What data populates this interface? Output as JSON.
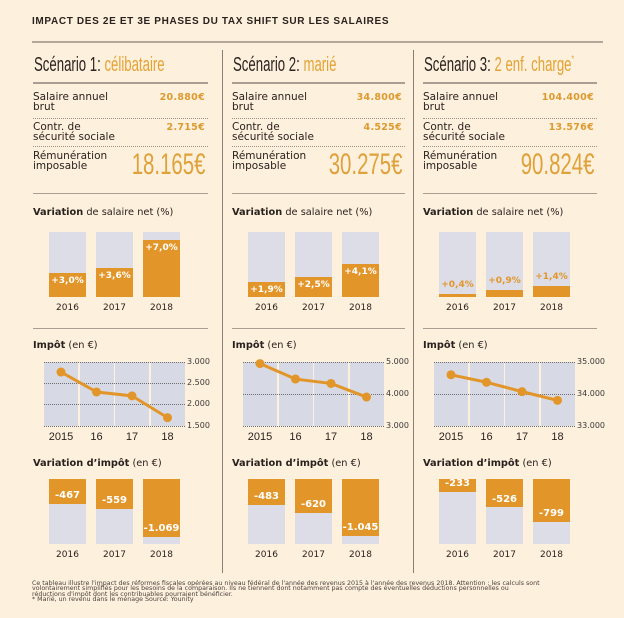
{
  "title": "IMPACT DES 2E ET 3E PHASES DU TAX SHIFT SUR LES SALAIRES",
  "colors": {
    "background": "#fdf0dd",
    "accent": "#e2962a",
    "accent_text": "#dc9b30",
    "bar_track": "#dcdde6",
    "plot_column": "#d7d9e4",
    "text": "#2a221e",
    "rule": "#aa9d92"
  },
  "section_titles": {
    "net_salary": {
      "bold": "Variation",
      "rest": " de salaire net (%)"
    },
    "tax": {
      "bold": "Impôt",
      "rest": " (en €)"
    },
    "tax_change": {
      "bold": "Variation d’impôt",
      "rest": " (en €)"
    }
  },
  "scenarios": [
    {
      "heading": "Scénario 1:",
      "highlight": "célibataire",
      "note_mark": "",
      "rows": [
        {
          "label": [
            "Salaire annuel",
            "brut"
          ],
          "value": "20.880€"
        },
        {
          "label": [
            "Contr. de",
            "sécurité sociale"
          ],
          "value": "2.715€"
        }
      ],
      "taxable": {
        "label": [
          "Rémunération",
          "imposable"
        ],
        "value": "18.165€"
      }
    },
    {
      "heading": "Scénario 2:",
      "highlight": "marié",
      "note_mark": "",
      "rows": [
        {
          "label": [
            "Salaire annuel",
            "brut"
          ],
          "value": "34.800€"
        },
        {
          "label": [
            "Contr. de",
            "sécurité sociale"
          ],
          "value": "4.525€"
        }
      ],
      "taxable": {
        "label": [
          "Rémunération",
          "imposable"
        ],
        "value": "30.275€"
      }
    },
    {
      "heading": "Scénario 3:",
      "highlight": "2 enf. charge",
      "note_mark": "*",
      "rows": [
        {
          "label": [
            "Salaire annuel",
            "brut"
          ],
          "value": "104.400€"
        },
        {
          "label": [
            "Contr. de",
            "sécurité sociale"
          ],
          "value": "13.576€"
        }
      ],
      "taxable": {
        "label": [
          "Rémunération",
          "imposable"
        ],
        "value": "90.824€"
      }
    }
  ],
  "chart_data": [
    {
      "scenario": "Scénario 1",
      "type": "bar",
      "title": "Variation de salaire net (%)",
      "categories": [
        "2016",
        "2017",
        "2018"
      ],
      "values": [
        3.0,
        3.6,
        7.0
      ],
      "data_labels": [
        "+3,0%",
        "+3,6%",
        "+7,0%"
      ],
      "ylim": [
        0,
        8
      ]
    },
    {
      "scenario": "Scénario 1",
      "type": "line",
      "title": "Impôt (en €)",
      "categories": [
        "2015",
        "16",
        "17",
        "18"
      ],
      "values": [
        2765,
        2298,
        2206,
        1696
      ],
      "yticks": [
        3000,
        2500,
        2000,
        1500
      ],
      "ytick_labels": [
        "3.000",
        "2.500",
        "2.000",
        "1.500"
      ],
      "ylim": [
        1500,
        3000
      ],
      "grid": true
    },
    {
      "scenario": "Scénario 1",
      "type": "bar",
      "title": "Variation d’impôt (en €)",
      "categories": [
        "2016",
        "2017",
        "2018"
      ],
      "values": [
        -467,
        -559,
        -1069
      ],
      "data_labels": [
        "-467",
        "-559",
        "-1.069"
      ],
      "ylim": [
        -1200,
        0
      ]
    },
    {
      "scenario": "Scénario 2",
      "type": "bar",
      "title": "Variation de salaire net (%)",
      "categories": [
        "2016",
        "2017",
        "2018"
      ],
      "values": [
        1.9,
        2.5,
        4.1
      ],
      "data_labels": [
        "+1,9%",
        "+2,5%",
        "+4,1%"
      ],
      "ylim": [
        0,
        8
      ]
    },
    {
      "scenario": "Scénario 2",
      "type": "line",
      "title": "Impôt (en €)",
      "categories": [
        "2015",
        "16",
        "17",
        "18"
      ],
      "values": [
        4950,
        4467,
        4330,
        3905
      ],
      "yticks": [
        5000,
        4000,
        3000
      ],
      "ytick_labels": [
        "5.000",
        "4.000",
        "3.000"
      ],
      "ylim": [
        3000,
        5000
      ],
      "grid": true
    },
    {
      "scenario": "Scénario 2",
      "type": "bar",
      "title": "Variation d’impôt (en €)",
      "categories": [
        "2016",
        "2017",
        "2018"
      ],
      "values": [
        -483,
        -620,
        -1045
      ],
      "data_labels": [
        "-483",
        "-620",
        "-1.045"
      ],
      "ylim": [
        -1200,
        0
      ]
    },
    {
      "scenario": "Scénario 3",
      "type": "bar",
      "title": "Variation de salaire net (%)",
      "categories": [
        "2016",
        "2017",
        "2018"
      ],
      "values": [
        0.4,
        0.9,
        1.4
      ],
      "data_labels": [
        "+0,4%",
        "+0,9%",
        "+1,4%"
      ],
      "ylim": [
        0,
        8
      ]
    },
    {
      "scenario": "Scénario 3",
      "type": "line",
      "title": "Impôt (en €)",
      "categories": [
        "2015",
        "16",
        "17",
        "18"
      ],
      "values": [
        34600,
        34367,
        34074,
        33801
      ],
      "yticks": [
        35000,
        34000,
        33000
      ],
      "ytick_labels": [
        "35.000",
        "34.000",
        "33.000"
      ],
      "ylim": [
        33000,
        35000
      ],
      "grid": true
    },
    {
      "scenario": "Scénario 3",
      "type": "bar",
      "title": "Variation d’impôt (en €)",
      "categories": [
        "2016",
        "2017",
        "2018"
      ],
      "values": [
        -233,
        -526,
        -799
      ],
      "data_labels": [
        "-233",
        "-526",
        "-799"
      ],
      "ylim": [
        -1200,
        0
      ]
    }
  ],
  "footnote": {
    "lines": [
      "Ce tableau illustre l'impact des réformes fiscales opérées au niveau fédéral de l'année des revenus 2015 à l'année des revenus 2018. Attention : les calculs sont",
      "volontairement simplifiés pour les besoins de la comparaison. Ils ne tiennent dont notamment pas compte des éventuelles déductions personnelles ou",
      "réductions d'impôt dont les contribuables pourraient bénéficier.",
      "* Marié, un revenu dans le ménage  Source: Younity"
    ]
  }
}
